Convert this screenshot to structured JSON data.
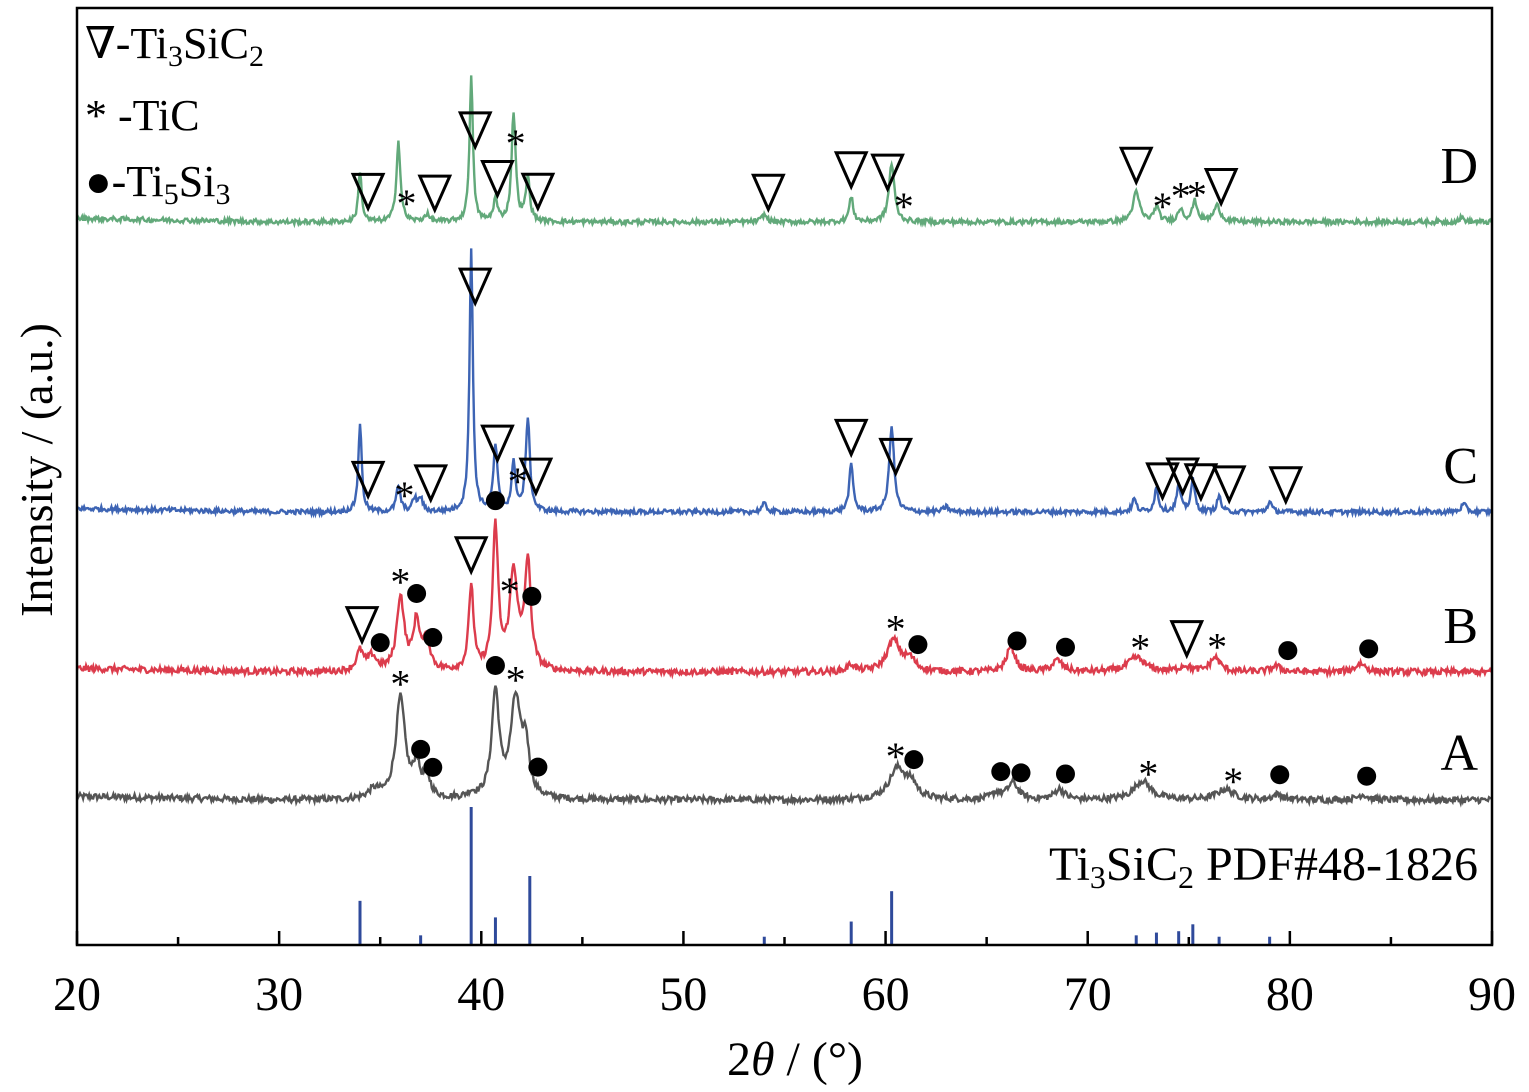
{
  "chart_data": {
    "type": "line",
    "xlabel_prefix": "2",
    "xlabel_var": "θ",
    "xlabel_suffix": " / (°)",
    "ylabel": "Intensity / (a.u.)",
    "xlim": [
      20,
      90
    ],
    "xticks": [
      20,
      30,
      40,
      50,
      60,
      70,
      80,
      90
    ],
    "minor_xtick_step": 5,
    "y_ticks_shown": false,
    "legend": {
      "position": "top-left",
      "entries": [
        {
          "marker": "triangle-down",
          "prefix": "∇-Ti",
          "sub1": "3",
          "mid": "SiC",
          "sub2": "2",
          "phase": "Ti3SiC2"
        },
        {
          "marker": "asterisk",
          "prefix": "* -TiC",
          "phase": "TiC"
        },
        {
          "marker": "circle",
          "prefix": "●-Ti",
          "sub1": "5",
          "mid": "Si",
          "sub2": "3",
          "phase": "Ti5Si3"
        }
      ]
    },
    "reference": {
      "label_main": "Ti",
      "label_sub1": "3",
      "label_mid": "SiC",
      "label_sub2": "2",
      "label_tail": " PDF#48-1826",
      "color": "#2f4a9b",
      "peaks": [
        {
          "x": 34.0,
          "i": 32
        },
        {
          "x": 37.0,
          "i": 7
        },
        {
          "x": 39.5,
          "i": 100
        },
        {
          "x": 40.7,
          "i": 20
        },
        {
          "x": 42.4,
          "i": 50
        },
        {
          "x": 54.0,
          "i": 6
        },
        {
          "x": 58.3,
          "i": 17
        },
        {
          "x": 60.3,
          "i": 39
        },
        {
          "x": 72.4,
          "i": 7
        },
        {
          "x": 73.4,
          "i": 9
        },
        {
          "x": 74.5,
          "i": 10
        },
        {
          "x": 75.2,
          "i": 15
        },
        {
          "x": 76.5,
          "i": 6
        },
        {
          "x": 79.0,
          "i": 6
        }
      ]
    },
    "series": [
      {
        "name": "A",
        "color": "#555555",
        "baseline": 0,
        "noise": 4,
        "peaks": [
          {
            "x": 34.7,
            "h": 8,
            "w": 0.35
          },
          {
            "x": 36.0,
            "h": 96,
            "w": 0.28
          },
          {
            "x": 36.8,
            "h": 30,
            "w": 0.2
          },
          {
            "x": 37.3,
            "h": 20,
            "w": 0.2
          },
          {
            "x": 39.5,
            "h": 4,
            "w": 0.2
          },
          {
            "x": 40.7,
            "h": 100,
            "w": 0.22
          },
          {
            "x": 41.7,
            "h": 92,
            "w": 0.3
          },
          {
            "x": 42.2,
            "h": 45,
            "w": 0.2
          },
          {
            "x": 60.6,
            "h": 30,
            "w": 0.5
          },
          {
            "x": 61.3,
            "h": 12,
            "w": 0.3
          },
          {
            "x": 65.5,
            "h": 6,
            "w": 0.3
          },
          {
            "x": 66.3,
            "h": 16,
            "w": 0.3
          },
          {
            "x": 68.6,
            "h": 10,
            "w": 0.3
          },
          {
            "x": 72.7,
            "h": 18,
            "w": 0.5
          },
          {
            "x": 76.8,
            "h": 10,
            "w": 0.5
          },
          {
            "x": 79.4,
            "h": 5,
            "w": 0.3
          },
          {
            "x": 83.6,
            "h": 5,
            "w": 0.3
          }
        ],
        "markers": [
          {
            "x": 36.0,
            "type": "asterisk",
            "dy": 0
          },
          {
            "x": 37.0,
            "type": "circle",
            "dy": 0
          },
          {
            "x": 37.6,
            "type": "circle",
            "dy": 0
          },
          {
            "x": 40.7,
            "type": "circle",
            "dy": 0
          },
          {
            "x": 41.7,
            "type": "asterisk",
            "dy": 0
          },
          {
            "x": 42.8,
            "type": "circle",
            "dy": 0
          },
          {
            "x": 60.5,
            "type": "asterisk",
            "dy": 0
          },
          {
            "x": 61.4,
            "type": "circle",
            "dy": 0
          },
          {
            "x": 65.7,
            "type": "circle",
            "dy": 0
          },
          {
            "x": 66.7,
            "type": "circle",
            "dy": 0
          },
          {
            "x": 68.9,
            "type": "circle",
            "dy": 0
          },
          {
            "x": 73.0,
            "type": "asterisk",
            "dy": 0
          },
          {
            "x": 77.2,
            "type": "asterisk",
            "dy": 0
          },
          {
            "x": 79.5,
            "type": "circle",
            "dy": 0
          },
          {
            "x": 83.8,
            "type": "circle",
            "dy": 0
          }
        ]
      },
      {
        "name": "B",
        "color": "#dc3c4c",
        "baseline": 0,
        "noise": 4,
        "peaks": [
          {
            "x": 34.0,
            "h": 14,
            "w": 0.2
          },
          {
            "x": 34.6,
            "h": 10,
            "w": 0.25
          },
          {
            "x": 36.0,
            "h": 52,
            "w": 0.22
          },
          {
            "x": 36.8,
            "h": 34,
            "w": 0.2
          },
          {
            "x": 37.3,
            "h": 20,
            "w": 0.2
          },
          {
            "x": 39.5,
            "h": 60,
            "w": 0.14
          },
          {
            "x": 40.7,
            "h": 100,
            "w": 0.16
          },
          {
            "x": 41.6,
            "h": 68,
            "w": 0.24
          },
          {
            "x": 42.3,
            "h": 75,
            "w": 0.18
          },
          {
            "x": 58.3,
            "h": 5,
            "w": 0.2
          },
          {
            "x": 60.4,
            "h": 22,
            "w": 0.4
          },
          {
            "x": 61.2,
            "h": 8,
            "w": 0.3
          },
          {
            "x": 66.2,
            "h": 18,
            "w": 0.25
          },
          {
            "x": 68.5,
            "h": 8,
            "w": 0.3
          },
          {
            "x": 72.4,
            "h": 10,
            "w": 0.5
          },
          {
            "x": 74.8,
            "h": 4,
            "w": 0.3
          },
          {
            "x": 76.3,
            "h": 10,
            "w": 0.3
          },
          {
            "x": 79.3,
            "h": 4,
            "w": 0.3
          },
          {
            "x": 83.5,
            "h": 6,
            "w": 0.3
          }
        ],
        "markers": [
          {
            "x": 34.1,
            "type": "triangle",
            "dy": 0
          },
          {
            "x": 35.0,
            "type": "circle",
            "dy": 0
          },
          {
            "x": 36.0,
            "type": "asterisk",
            "dy": 0
          },
          {
            "x": 36.8,
            "type": "circle",
            "dy": 0
          },
          {
            "x": 37.6,
            "type": "circle",
            "dy": 0
          },
          {
            "x": 39.5,
            "type": "triangle",
            "dy": 0
          },
          {
            "x": 40.7,
            "type": "circle",
            "dy": 0
          },
          {
            "x": 41.4,
            "type": "asterisk",
            "dy": 0
          },
          {
            "x": 42.5,
            "type": "circle",
            "dy": 0
          },
          {
            "x": 60.5,
            "type": "asterisk",
            "dy": 0
          },
          {
            "x": 61.6,
            "type": "circle",
            "dy": 0
          },
          {
            "x": 66.5,
            "type": "circle",
            "dy": 0
          },
          {
            "x": 68.9,
            "type": "circle",
            "dy": 0
          },
          {
            "x": 72.6,
            "type": "asterisk",
            "dy": 0
          },
          {
            "x": 74.9,
            "type": "triangle",
            "dy": 0
          },
          {
            "x": 76.4,
            "type": "asterisk",
            "dy": 0
          },
          {
            "x": 79.9,
            "type": "circle",
            "dy": 0
          },
          {
            "x": 83.9,
            "type": "circle",
            "dy": 0
          }
        ]
      },
      {
        "name": "C",
        "color": "#3d64b4",
        "baseline": 0,
        "noise": 3,
        "peaks": [
          {
            "x": 34.0,
            "h": 34,
            "w": 0.1
          },
          {
            "x": 35.9,
            "h": 10,
            "w": 0.12
          },
          {
            "x": 36.7,
            "h": 5,
            "w": 0.12
          },
          {
            "x": 37.0,
            "h": 5,
            "w": 0.12
          },
          {
            "x": 39.5,
            "h": 100,
            "w": 0.1
          },
          {
            "x": 40.7,
            "h": 25,
            "w": 0.12
          },
          {
            "x": 41.6,
            "h": 18,
            "w": 0.12
          },
          {
            "x": 42.3,
            "h": 36,
            "w": 0.12
          },
          {
            "x": 54.0,
            "h": 3,
            "w": 0.15
          },
          {
            "x": 58.3,
            "h": 18,
            "w": 0.12
          },
          {
            "x": 60.3,
            "h": 33,
            "w": 0.14
          },
          {
            "x": 63.0,
            "h": 2,
            "w": 0.15
          },
          {
            "x": 72.3,
            "h": 5,
            "w": 0.12
          },
          {
            "x": 73.4,
            "h": 9,
            "w": 0.12
          },
          {
            "x": 74.5,
            "h": 10,
            "w": 0.12
          },
          {
            "x": 75.2,
            "h": 12,
            "w": 0.12
          },
          {
            "x": 76.5,
            "h": 6,
            "w": 0.12
          },
          {
            "x": 79.0,
            "h": 4,
            "w": 0.12
          },
          {
            "x": 88.6,
            "h": 3,
            "w": 0.15
          }
        ],
        "markers": [
          {
            "x": 34.4,
            "type": "triangle",
            "dy": 0
          },
          {
            "x": 36.2,
            "type": "asterisk",
            "dy": 0
          },
          {
            "x": 37.5,
            "type": "triangle",
            "dy": 0
          },
          {
            "x": 39.7,
            "type": "triangle",
            "dy": -145
          },
          {
            "x": 40.8,
            "type": "triangle",
            "dy": 0
          },
          {
            "x": 41.8,
            "type": "asterisk",
            "dy": 0
          },
          {
            "x": 42.7,
            "type": "triangle",
            "dy": 0
          },
          {
            "x": 58.3,
            "type": "triangle",
            "dy": 0
          },
          {
            "x": 60.5,
            "type": "triangle",
            "dy": 0
          },
          {
            "x": 73.7,
            "type": "triangle",
            "dy": 0
          },
          {
            "x": 74.7,
            "type": "triangle",
            "dy": 0
          },
          {
            "x": 75.6,
            "type": "triangle",
            "dy": 0
          },
          {
            "x": 77.0,
            "type": "triangle",
            "dy": 0
          },
          {
            "x": 79.8,
            "type": "triangle",
            "dy": 0
          }
        ]
      },
      {
        "name": "D",
        "color": "#62a97a",
        "baseline": 0,
        "noise": 3,
        "peaks": [
          {
            "x": 34.0,
            "h": 35,
            "w": 0.1
          },
          {
            "x": 35.9,
            "h": 55,
            "w": 0.12
          },
          {
            "x": 37.3,
            "h": 5,
            "w": 0.15
          },
          {
            "x": 39.5,
            "h": 100,
            "w": 0.1
          },
          {
            "x": 40.7,
            "h": 15,
            "w": 0.12
          },
          {
            "x": 41.6,
            "h": 75,
            "w": 0.12
          },
          {
            "x": 42.3,
            "h": 30,
            "w": 0.12
          },
          {
            "x": 54.0,
            "h": 5,
            "w": 0.15
          },
          {
            "x": 58.3,
            "h": 17,
            "w": 0.12
          },
          {
            "x": 60.3,
            "h": 40,
            "w": 0.16
          },
          {
            "x": 72.4,
            "h": 20,
            "w": 0.2
          },
          {
            "x": 73.4,
            "h": 10,
            "w": 0.15
          },
          {
            "x": 74.6,
            "h": 9,
            "w": 0.15
          },
          {
            "x": 75.3,
            "h": 14,
            "w": 0.15
          },
          {
            "x": 76.4,
            "h": 11,
            "w": 0.2
          },
          {
            "x": 88.5,
            "h": 3,
            "w": 0.15
          }
        ],
        "markers": [
          {
            "x": 34.4,
            "type": "triangle",
            "dy": 0
          },
          {
            "x": 36.3,
            "type": "asterisk",
            "dy": 0
          },
          {
            "x": 37.7,
            "type": "triangle",
            "dy": 0
          },
          {
            "x": 39.7,
            "type": "triangle",
            "dy": -35
          },
          {
            "x": 40.8,
            "type": "triangle",
            "dy": 0
          },
          {
            "x": 41.7,
            "type": "asterisk",
            "dy": 0
          },
          {
            "x": 42.8,
            "type": "triangle",
            "dy": 0
          },
          {
            "x": 54.2,
            "type": "triangle",
            "dy": 0
          },
          {
            "x": 58.3,
            "type": "triangle",
            "dy": 0
          },
          {
            "x": 60.1,
            "type": "triangle",
            "dy": 0
          },
          {
            "x": 60.9,
            "type": "asterisk",
            "dy": 0
          },
          {
            "x": 72.4,
            "type": "triangle",
            "dy": 0
          },
          {
            "x": 73.7,
            "type": "asterisk",
            "dy": 0
          },
          {
            "x": 74.6,
            "type": "asterisk",
            "dy": 0
          },
          {
            "x": 75.4,
            "type": "asterisk",
            "dy": 0
          },
          {
            "x": 76.6,
            "type": "triangle",
            "dy": 0
          }
        ]
      }
    ]
  }
}
